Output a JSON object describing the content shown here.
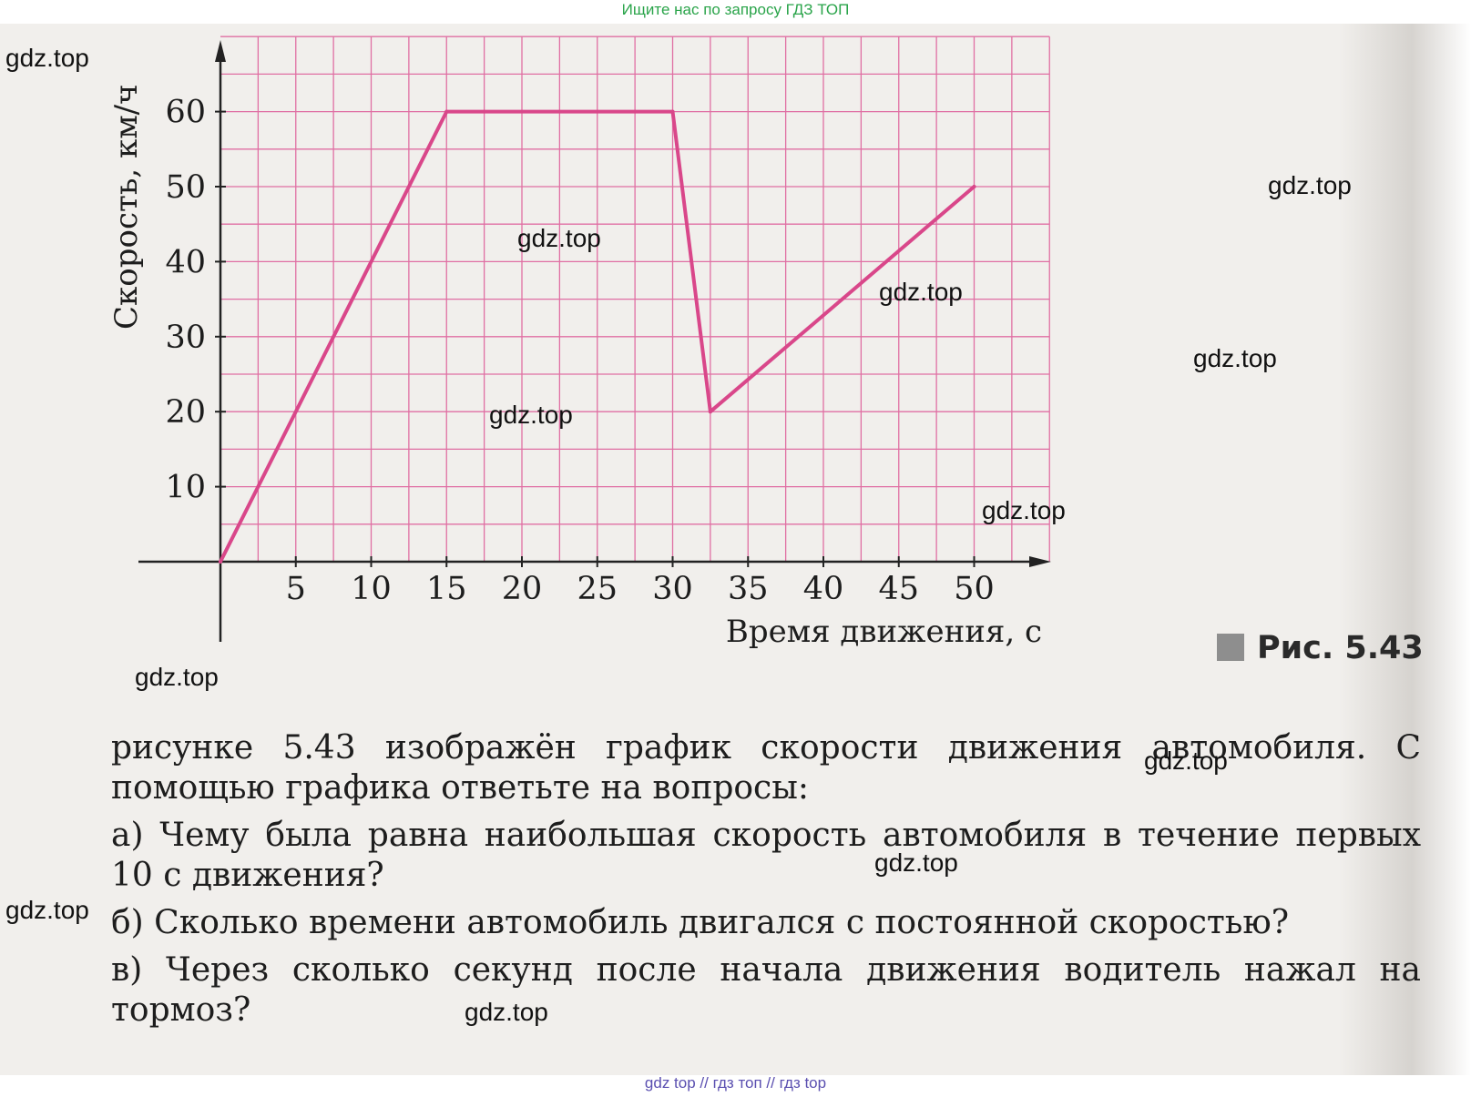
{
  "banner_text": "Ищите нас по запросу ГДЗ ТОП",
  "footer_text": "gdz top  //  гдз топ  //  гдз top",
  "watermark_text": "gdz.top",
  "figure_caption": "Рис. 5.43",
  "problem": {
    "intro": "рисунке 5.43 изображён график скорости движения автомобиля. С помощью графика ответьте на вопросы:",
    "questions": [
      "а) Чему была равна наибольшая скорость автомобиля в течение первых 10 с движения?",
      "б) Сколько времени автомобиль двигался с постоянной скоростью?",
      "в) Через сколько секунд после начала движения водитель нажал на тормоз?"
    ]
  },
  "chart_data": {
    "type": "line",
    "title": "",
    "xlabel": "Время движения, с",
    "ylabel": "Скорость, км/ч",
    "x_ticks": [
      5,
      10,
      15,
      20,
      25,
      30,
      35,
      40,
      45,
      50
    ],
    "y_ticks": [
      10,
      20,
      30,
      40,
      50,
      60
    ],
    "xlim": [
      0,
      55
    ],
    "ylim": [
      0,
      70
    ],
    "grid": true,
    "grid_color": "#e06fa3",
    "line_color": "#d9478a",
    "series": [
      {
        "x": [
          0,
          15,
          30,
          32.5,
          50
        ],
        "y": [
          0,
          60,
          60,
          20,
          50
        ]
      }
    ]
  }
}
